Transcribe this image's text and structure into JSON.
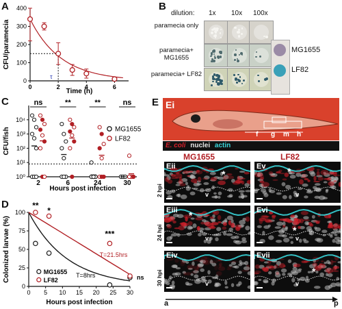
{
  "panels": {
    "A": {
      "label": "A",
      "ylabel": "CFU/paramecia",
      "xlabel": "Time (h)",
      "yticks": [
        "0",
        "100",
        "200",
        "300",
        "400"
      ],
      "xticks": [
        "0",
        "2",
        "4",
        "6"
      ],
      "tau_marker": "τ"
    },
    "B": {
      "label": "B",
      "header": {
        "dilution": "dilution:",
        "d1": "1x",
        "d2": "10x",
        "d3": "100x"
      },
      "rows": [
        "paramecia only",
        "paramecia+ MG1655",
        "paramecia+ LF82"
      ],
      "side_labels": [
        "MG1655",
        "LF82"
      ]
    },
    "C": {
      "label": "C",
      "ylabel": "CFU/fish",
      "xlabel": "Hours post infection",
      "xticks": [
        "2",
        "6",
        "24",
        "30"
      ],
      "yticks": [
        "10⁰",
        "10¹",
        "10²",
        "10³",
        "10⁴"
      ],
      "significance": [
        "ns",
        "**",
        "**",
        "ns"
      ],
      "legend": [
        "MG1655",
        "LF82"
      ]
    },
    "D": {
      "label": "D",
      "ylabel": "Colonized larvae (%)",
      "xlabel": "Hours post infection",
      "xticks": [
        "0",
        "5",
        "10",
        "15",
        "20",
        "25",
        "30"
      ],
      "yticks": [
        "0",
        "25",
        "50",
        "75",
        "100"
      ],
      "legend": [
        "MG1655",
        "LF82"
      ],
      "annotations": {
        "t_lf82": "T=21.5hrs",
        "t_mg": "T=8hrs",
        "stars_2": "**",
        "stars_5": "*",
        "stars_24": "***",
        "ns_30": "ns"
      }
    },
    "E": {
      "label": "E",
      "fish_label": "Ei",
      "fish_letters": [
        "f",
        "g",
        "m",
        "h"
      ],
      "stain_legend": {
        "ecoli": "E. coli",
        "nuclei": "nuclei",
        "actin": "actin"
      },
      "columns": [
        "MG1655",
        "LF82"
      ],
      "rows": [
        "2 hpi",
        "24 hpi",
        "30 hpi"
      ],
      "micro_labels": [
        "Eii",
        "Ev",
        "Eiii",
        "Evi",
        "Eiv",
        "Evii"
      ],
      "v_label": "v",
      "star": "*",
      "axis_a": "a",
      "axis_p": "p"
    }
  },
  "colors": {
    "black_series": "#1a1a1a",
    "red_series": "#b11f24",
    "cyan": "#39d4d8",
    "red_signal": "#d2202a",
    "fish_bg": "#d9412c"
  },
  "chart_data": [
    {
      "type": "scatter",
      "panel": "A",
      "title": "",
      "xlabel": "Time (h)",
      "ylabel": "CFU/paramecia",
      "xlim": [
        0,
        7
      ],
      "ylim": [
        0,
        400
      ],
      "series": [
        {
          "name": "",
          "x": [
            0,
            1,
            2,
            3,
            4,
            6
          ],
          "y": [
            340,
            300,
            150,
            60,
            40,
            10
          ],
          "err": [
            120,
            20,
            60,
            30,
            25,
            10
          ]
        }
      ],
      "fit": "exponential decay",
      "reference": {
        "x": 2,
        "y": 150
      }
    },
    {
      "type": "scatter",
      "panel": "C",
      "title": "",
      "xlabel": "Hours post infection",
      "ylabel": "CFU/fish",
      "categories": [
        "2",
        "6",
        "24",
        "30"
      ],
      "ylog": true,
      "ylim": [
        1,
        100000
      ],
      "detection_limit": 8,
      "series": [
        {
          "name": "MG1655",
          "values": [
            [
              20000,
              10000,
              3000,
              1000,
              500,
              100,
              1,
              1,
              1
            ],
            [
              5000,
              1000,
              300,
              100,
              20,
              1,
              1,
              1
            ],
            [
              10,
              1,
              1,
              1,
              1,
              1,
              1,
              1
            ],
            [
              1,
              1,
              1,
              1,
              1,
              1
            ]
          ]
        },
        {
          "name": "LF82",
          "values": [
            [
              20000,
              10000,
              5000,
              2000,
              800,
              300,
              100,
              1,
              1
            ],
            [
              10000,
              5000,
              3000,
              1500,
              800,
              300,
              100,
              1
            ],
            [
              3000,
              1000,
              200,
              100,
              20,
              1,
              1,
              1
            ],
            [
              30,
              1,
              1,
              1,
              1,
              1,
              1
            ]
          ]
        }
      ]
    },
    {
      "type": "line",
      "panel": "D",
      "title": "",
      "xlabel": "Hours post infection",
      "ylabel": "Colonized larvae (%)",
      "xlim": [
        0,
        30
      ],
      "ylim": [
        0,
        100
      ],
      "series": [
        {
          "name": "MG1655",
          "x": [
            2,
            6,
            24,
            30
          ],
          "y": [
            58,
            45,
            2,
            12
          ]
        },
        {
          "name": "LF82",
          "x": [
            2,
            6,
            24,
            30
          ],
          "y": [
            100,
            95,
            58,
            14
          ]
        }
      ]
    }
  ]
}
